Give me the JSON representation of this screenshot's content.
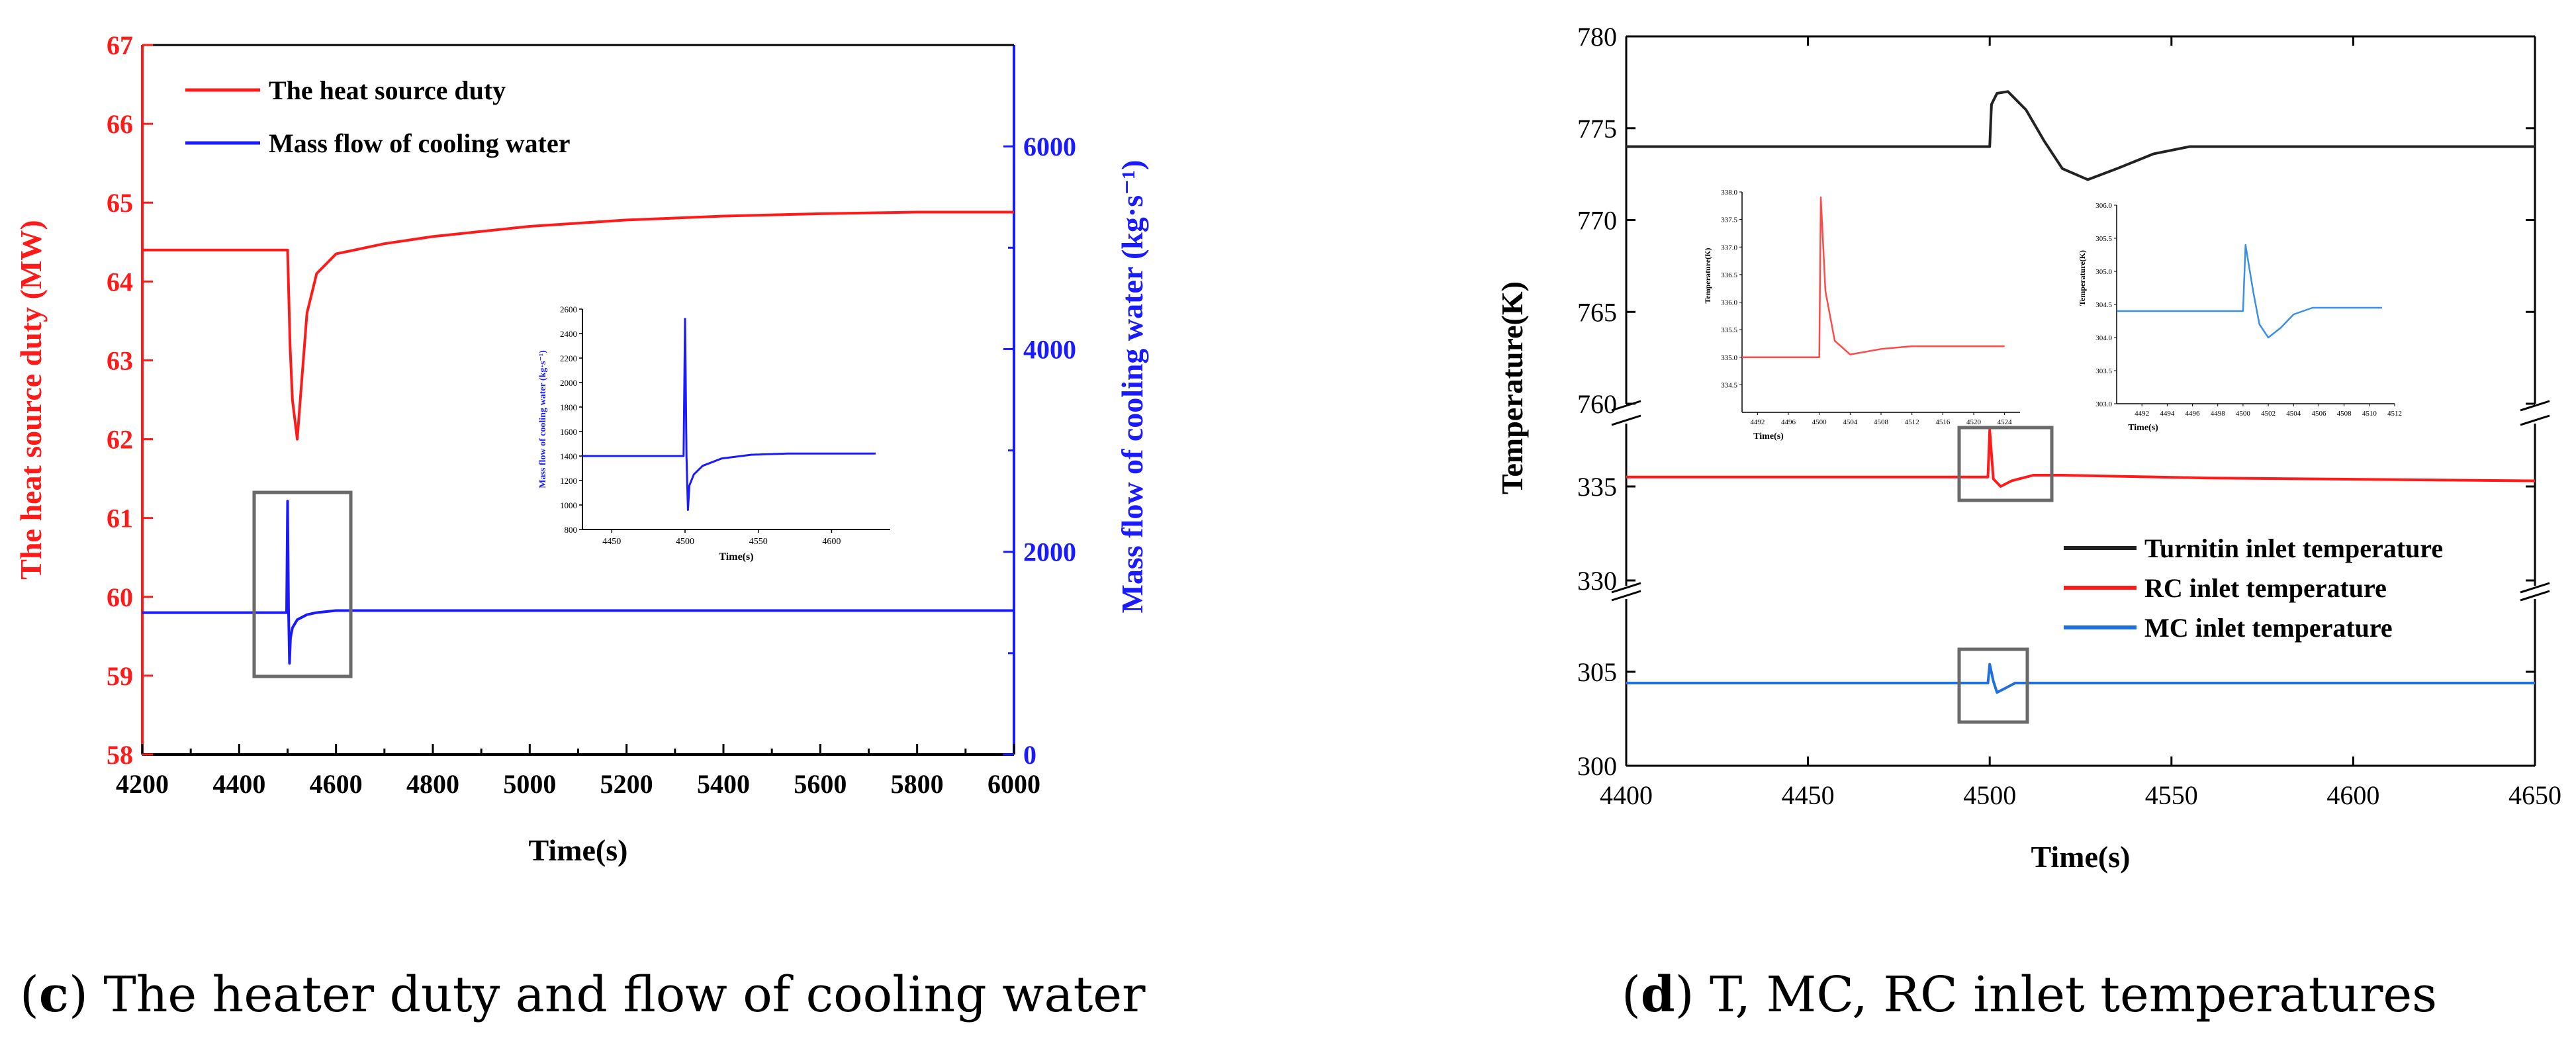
{
  "captions": {
    "c": {
      "letter": "c",
      "text": "The heater duty and flow of cooling water"
    },
    "d": {
      "letter": "d",
      "text": "T, MC, RC inlet temperatures"
    }
  },
  "colors": {
    "red": "#ff1a1a",
    "blue": "#1a1aff",
    "lightblue": "#1f6fe0",
    "black": "#222222",
    "gray": "#666666"
  },
  "chart_data": [
    {
      "id": "c",
      "type": "line",
      "xlabel": "Time(s)",
      "ylabel_left": "The heat source duty (MW)",
      "ylabel_right": "Mass flow of cooling water (kg·s⁻¹)",
      "xlim": [
        4200,
        6000
      ],
      "ylim_left": [
        58,
        67
      ],
      "ylim_right": [
        0,
        7000
      ],
      "xticks": [
        4200,
        4400,
        4600,
        4800,
        5000,
        5200,
        5400,
        5600,
        5800,
        6000
      ],
      "yticks_left": [
        58,
        59,
        60,
        61,
        62,
        63,
        64,
        65,
        66,
        67
      ],
      "yticks_right": [
        0,
        2000,
        4000,
        6000
      ],
      "legend": [
        "The heat source duty",
        "Mass flow of cooling water"
      ],
      "series": [
        {
          "name": "The heat source duty",
          "axis": "left",
          "color": "#ff1a1a",
          "x": [
            4200,
            4500,
            4505,
            4510,
            4520,
            4530,
            4540,
            4560,
            4600,
            4700,
            4800,
            5000,
            5200,
            5400,
            5600,
            5800,
            6000
          ],
          "y": [
            64.4,
            64.4,
            63.2,
            62.5,
            62.0,
            62.8,
            63.6,
            64.1,
            64.35,
            64.48,
            64.57,
            64.7,
            64.78,
            64.83,
            64.86,
            64.88,
            64.88
          ]
        },
        {
          "name": "Mass flow of cooling water",
          "axis": "right",
          "color": "#1a1aff",
          "x": [
            4200,
            4498,
            4500,
            4502,
            4504,
            4506,
            4510,
            4520,
            4540,
            4560,
            4600,
            4700,
            6000
          ],
          "y": [
            1400,
            1400,
            2500,
            1400,
            900,
            1150,
            1250,
            1330,
            1380,
            1400,
            1420,
            1420,
            1420
          ]
        }
      ],
      "inset": {
        "xlabel": "Time(s)",
        "ylabel": "Mass flow of cooling water (kg·s⁻¹)",
        "xticks": [
          4450,
          4500,
          4550,
          4600
        ],
        "xlim": [
          4430,
          4640
        ],
        "yticks": [
          800,
          1000,
          1200,
          1400,
          1600,
          1800,
          2000,
          2200,
          2400,
          2600
        ],
        "ylim": [
          800,
          2600
        ],
        "x": [
          4430,
          4499,
          4500,
          4501,
          4502,
          4503,
          4506,
          4512,
          4525,
          4545,
          4570,
          4600,
          4630
        ],
        "y": [
          1400,
          1400,
          2520,
          1400,
          960,
          1160,
          1250,
          1320,
          1380,
          1410,
          1420,
          1420,
          1420
        ]
      }
    },
    {
      "id": "d",
      "type": "line",
      "xlabel": "Time(s)",
      "ylabel": "Temperature(K)",
      "xlim": [
        4400,
        4650
      ],
      "xticks": [
        4400,
        4450,
        4500,
        4550,
        4600,
        4650
      ],
      "yticks": [
        300,
        305,
        330,
        335,
        760,
        765,
        770,
        775,
        780
      ],
      "legend": [
        "Turnitin inlet temperature",
        "RC inlet temperature",
        "MC inlet temperature"
      ],
      "series": [
        {
          "name": "Turnitin inlet temperature",
          "color": "#222222",
          "x": [
            4400,
            4500,
            4500.5,
            4502,
            4505,
            4510,
            4515,
            4520,
            4527,
            4535,
            4545,
            4555,
            4650
          ],
          "y": [
            774,
            774,
            776.3,
            776.9,
            777.0,
            776.0,
            774.3,
            772.8,
            772.2,
            772.8,
            773.6,
            774,
            774
          ]
        },
        {
          "name": "RC inlet temperature",
          "color": "#ff1a1a",
          "x": [
            4400,
            4499.5,
            4500,
            4501,
            4503,
            4506,
            4512,
            4520,
            4560,
            4650
          ],
          "y": [
            335.5,
            335.5,
            338.0,
            335.4,
            335.0,
            335.3,
            335.6,
            335.6,
            335.45,
            335.3
          ]
        },
        {
          "name": "MC inlet temperature",
          "color": "#1f6fe0",
          "x": [
            4400,
            4499.5,
            4500,
            4501,
            4502,
            4504,
            4507,
            4512,
            4650
          ],
          "y": [
            304.4,
            304.4,
            305.4,
            304.5,
            303.9,
            304.1,
            304.4,
            304.4,
            304.4
          ]
        }
      ],
      "insets": [
        {
          "id": "rc",
          "color": "#ff4a4a",
          "ylabel": "Temperature(K)",
          "xlabel": "Time(s)",
          "xlim": [
            4490,
            4526
          ],
          "ylim": [
            334,
            338
          ],
          "xticks": [
            4492,
            4496,
            4500,
            4504,
            4508,
            4512,
            4516,
            4520,
            4524
          ],
          "yticks": [
            "334.5",
            "335.0",
            "335.5",
            "336.0",
            "336.5",
            "337.0",
            "337.5",
            "338.0"
          ],
          "x": [
            4490,
            4500,
            4500.2,
            4500.8,
            4502,
            4504,
            4508,
            4512,
            4524
          ],
          "y": [
            335.0,
            335.0,
            337.9,
            336.2,
            335.3,
            335.05,
            335.15,
            335.2,
            335.2
          ]
        },
        {
          "id": "mc",
          "color": "#3a8fe8",
          "ylabel": "Temperature(K)",
          "xlabel": "Time(s)",
          "xlim": [
            4490,
            4512
          ],
          "ylim": [
            303,
            306
          ],
          "xticks": [
            4492,
            4494,
            4496,
            4498,
            4500,
            4502,
            4504,
            4506,
            4508,
            4510,
            4512
          ],
          "yticks": [
            "303.0",
            "303.5",
            "304.0",
            "304.5",
            "305.0",
            "305.5",
            "306.0"
          ],
          "x": [
            4490,
            4500,
            4500.2,
            4500.8,
            4501.3,
            4502,
            4503,
            4504,
            4505.5,
            4508,
            4511
          ],
          "y": [
            304.4,
            304.4,
            305.4,
            304.7,
            304.2,
            304.0,
            304.15,
            304.35,
            304.45,
            304.45,
            304.45
          ]
        }
      ]
    }
  ]
}
